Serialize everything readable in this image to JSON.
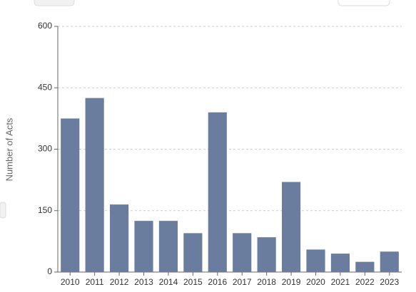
{
  "chart_data": {
    "type": "bar",
    "y_label": "Number of Acts",
    "categories": [
      "2010",
      "2011",
      "2012",
      "2013",
      "2014",
      "2015",
      "2016",
      "2017",
      "2018",
      "2019",
      "2020",
      "2021",
      "2022",
      "2023"
    ],
    "values": [
      375,
      425,
      165,
      125,
      125,
      95,
      390,
      95,
      85,
      220,
      55,
      45,
      25,
      50
    ],
    "color": "#6b7d9e",
    "ylim": [
      0,
      600
    ],
    "yticks": [
      0,
      150,
      300,
      450,
      600
    ],
    "grid": true
  }
}
